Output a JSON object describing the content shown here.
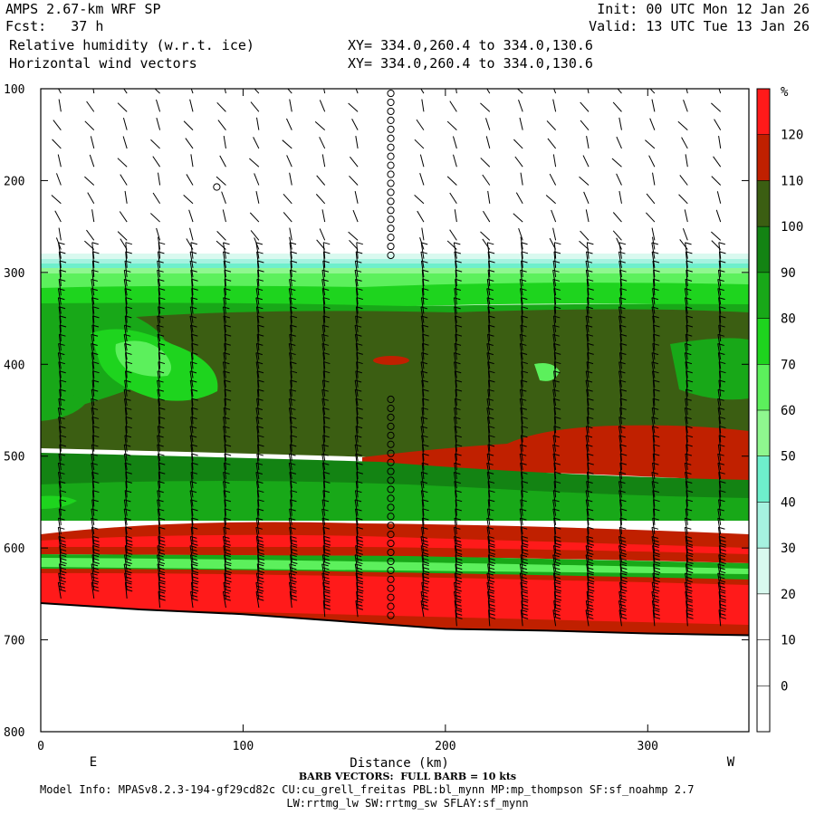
{
  "header": {
    "model": "AMPS 2.67-km WRF SP",
    "fcst": "Fcst:   37 h",
    "field1": "Relative humidity (w.r.t. ice)",
    "field2": "Horizontal wind vectors",
    "xy1": "XY= 334.0,260.4 to 334.0,130.6",
    "xy2": "XY= 334.0,260.4 to 334.0,130.6",
    "init": "Init: 00 UTC Mon 12 Jan 26",
    "valid": "Valid: 13 UTC Tue 13 Jan 26"
  },
  "footer": {
    "barb_note": "BARB VECTORS:  FULL BARB = 10 kts",
    "model_info": "Model Info: MPASv8.2.3-194-gf29cd82c CU:cu_grell_freitas PBL:bl_mynn MP:mp_thompson SF:sf_noahmp 2.7",
    "model_info2": "LW:rrtmg_lw SW:rrtmg_sw SFLAY:sf_mynn"
  },
  "chart_data": {
    "type": "heatmap",
    "subtype": "vertical cross-section, filled contours with wind barbs",
    "xlabel": "Distance (km)",
    "ylabel": "",
    "xlim": [
      0,
      350
    ],
    "ylim": [
      800,
      100
    ],
    "x_ticks": [
      0,
      100,
      200,
      300
    ],
    "y_ticks": [
      100,
      200,
      300,
      400,
      500,
      600,
      700,
      800
    ],
    "end_labels": {
      "left": "E",
      "right": "W"
    },
    "colorbar": {
      "unit": "%",
      "levels": [
        0,
        10,
        20,
        30,
        40,
        50,
        60,
        70,
        80,
        90,
        100,
        110,
        120
      ],
      "colors": [
        "#ffffff",
        "#ffffff",
        "#ffffff",
        "#d9f9ef",
        "#a6f2e0",
        "#6eefcc",
        "#8ff78f",
        "#5cf05c",
        "#1ed41e",
        "#18a818",
        "#138313",
        "#3b5e12",
        "#c02000",
        "#ff1a1a"
      ]
    },
    "terrain_hpa": [
      {
        "x": 0,
        "p": 660
      },
      {
        "x": 50,
        "p": 667
      },
      {
        "x": 100,
        "p": 672
      },
      {
        "x": 150,
        "p": 680
      },
      {
        "x": 175,
        "p": 684
      },
      {
        "x": 200,
        "p": 688
      },
      {
        "x": 250,
        "p": 690
      },
      {
        "x": 300,
        "p": 693
      },
      {
        "x": 350,
        "p": 695
      }
    ],
    "layers": [
      {
        "p_top": 100,
        "p_bot": 283,
        "rh_band": "< 30"
      },
      {
        "p_top": 283,
        "p_bot": 300,
        "rh_band": "30-60"
      },
      {
        "p_top": 300,
        "p_bot": 335,
        "rh_band": "70-90"
      },
      {
        "p_top": 335,
        "p_bot": 470,
        "rh_band": "90-110"
      },
      {
        "p_top": 470,
        "p_bot": 520,
        "rh_band": "100-120"
      },
      {
        "p_top": 520,
        "p_bot": 570,
        "rh_band": "80-100"
      },
      {
        "p_top": 570,
        "p_bot": 615,
        "rh_band": "110-130"
      },
      {
        "p_top": 615,
        "p_bot": 630,
        "rh_band": "80-100"
      },
      {
        "p_top": 630,
        "p_bot": 695,
        "rh_band": "> 120"
      }
    ]
  }
}
